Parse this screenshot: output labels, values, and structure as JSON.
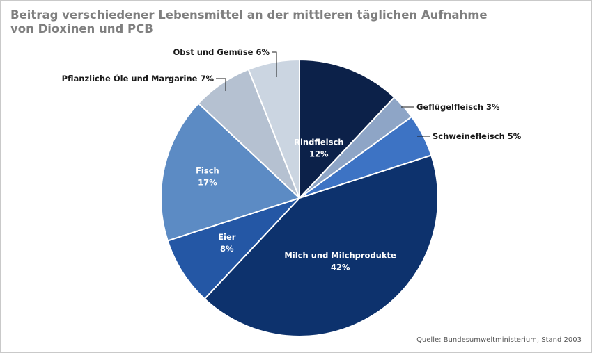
{
  "chart_data": {
    "type": "pie",
    "title_line1": "Beitrag verschiedener Lebensmittel an der mittleren täglichen Aufnahme",
    "title_line2": "von Dioxinen und PCB",
    "source": "Quelle: Bundesumweltministerium, Stand 2003",
    "start": "12 o'clock",
    "direction": "clockwise",
    "slices": [
      {
        "label": "Rindfleisch",
        "value": 12,
        "value_text": "12%",
        "color": "#0c2149",
        "label_style": "inside"
      },
      {
        "label": "Geflügelfleisch",
        "value": 3,
        "value_text": "3%",
        "color": "#8ea5c6",
        "label_style": "outside"
      },
      {
        "label": "Schweinefleisch",
        "value": 5,
        "value_text": "5%",
        "color": "#3d73c4",
        "label_style": "outside"
      },
      {
        "label": "Milch und Milchprodukte",
        "value": 42,
        "value_text": "42%",
        "color": "#0d326d",
        "label_style": "inside"
      },
      {
        "label": "Eier",
        "value": 8,
        "value_text": "8%",
        "color": "#2457a5",
        "label_style": "inside"
      },
      {
        "label": "Fisch",
        "value": 17,
        "value_text": "17%",
        "color": "#5c8bc4",
        "label_style": "inside"
      },
      {
        "label": "Pflanzliche Öle und Margarine",
        "value": 7,
        "value_text": "7%",
        "color": "#b5c1d1",
        "label_style": "outside"
      },
      {
        "label": "Obst und Gemüse",
        "value": 6,
        "value_text": "6%",
        "color": "#cbd5e1",
        "label_style": "outside"
      }
    ]
  }
}
